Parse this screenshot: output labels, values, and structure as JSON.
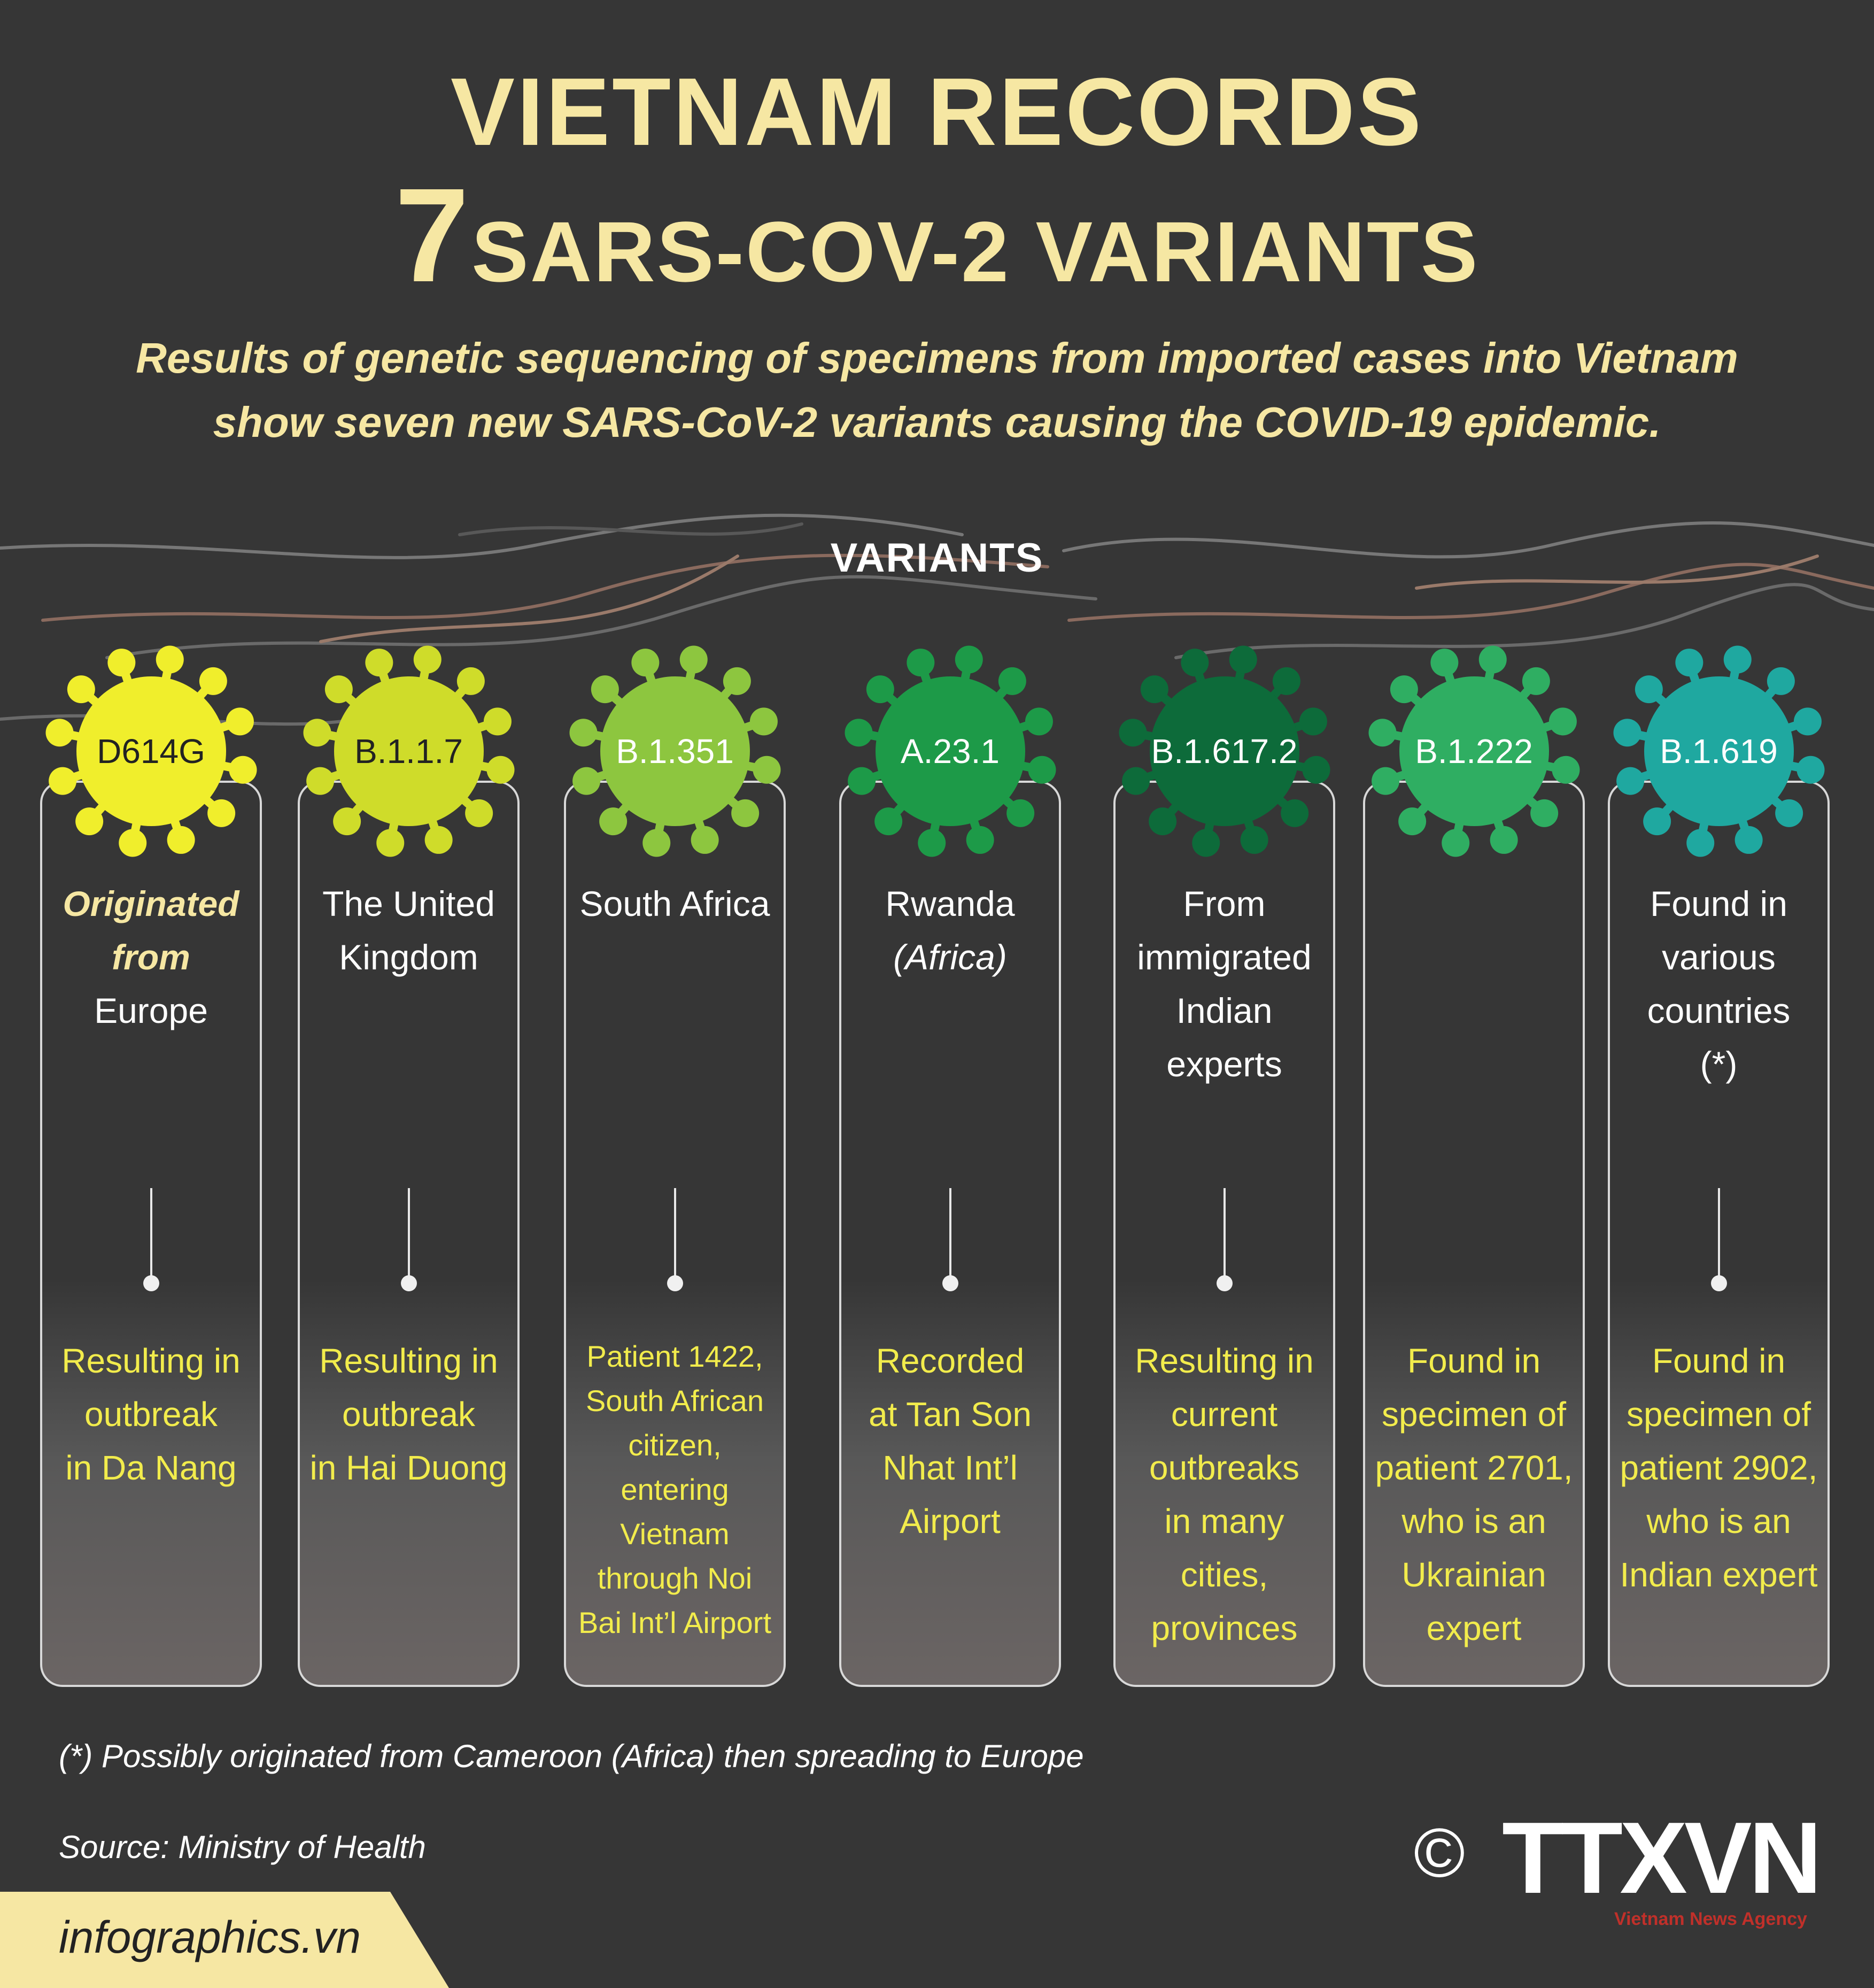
{
  "title": {
    "line1": "VIETNAM RECORDS",
    "line2_number": "7",
    "line2_text": "SARS-COV-2 VARIANTS"
  },
  "subtitle": {
    "line1": "Results of genetic sequencing of specimens from imported cases into Vietnam",
    "line2": "show seven new SARS-CoV-2 variants causing the COVID-19 epidemic."
  },
  "section_label": "VARIANTS",
  "variants": [
    {
      "code": "D614G",
      "color": "#f0ee2c",
      "origin_prefix": "Originated",
      "origin_prefix2": "from",
      "origin_lines": [
        "Europe"
      ],
      "result_lines": [
        "Resulting in",
        "outbreak",
        "in Da Nang"
      ]
    },
    {
      "code": "B.1.1.7",
      "color": "#cfdc2a",
      "origin_lines": [
        "The United",
        "Kingdom"
      ],
      "result_lines": [
        "Resulting in",
        "outbreak",
        "in Hai Duong"
      ]
    },
    {
      "code": "B.1.351",
      "color": "#8dc63f",
      "origin_lines": [
        "South Africa"
      ],
      "result_lines": [
        "Patient 1422,",
        "South African",
        "citizen,",
        "entering",
        "Vietnam",
        "through Noi",
        "Bai Int’l Airport"
      ]
    },
    {
      "code": "A.23.1",
      "color": "#1d9a48",
      "origin_lines": [
        "Rwanda"
      ],
      "origin_italic": "(Africa)",
      "result_lines": [
        "Recorded",
        "at Tan Son",
        "Nhat Int’l",
        "Airport"
      ]
    },
    {
      "code": "B.1.617.2",
      "color": "#0d6b3a",
      "origin_lines": [
        "From",
        "immigrated",
        "Indian",
        "experts"
      ],
      "result_lines": [
        "Resulting in",
        "current",
        "outbreaks",
        "in many",
        "cities,",
        "provinces"
      ]
    },
    {
      "code": "B.1.222",
      "color": "#2fae62",
      "origin_lines": [],
      "result_lines": [
        "Found in",
        "specimen of",
        "patient 2701,",
        "who is an",
        "Ukrainian",
        "expert"
      ]
    },
    {
      "code": "B.1.619",
      "color": "#1fa8a0",
      "origin_lines": [
        "Found in",
        "various",
        "countries",
        "(*)"
      ],
      "result_lines": [
        "Found in",
        "specimen of",
        "patient 2902,",
        "who is an",
        "Indian expert"
      ]
    }
  ],
  "footnote": "(*) Possibly originated from Cameroon (Africa) then spreading to Europe",
  "source": "Source: Ministry of Health",
  "brand": "infographics.vn",
  "copyright_symbol": "©",
  "logo_text": "TTXVN",
  "logo_subtext": "Vietnam News Agency"
}
